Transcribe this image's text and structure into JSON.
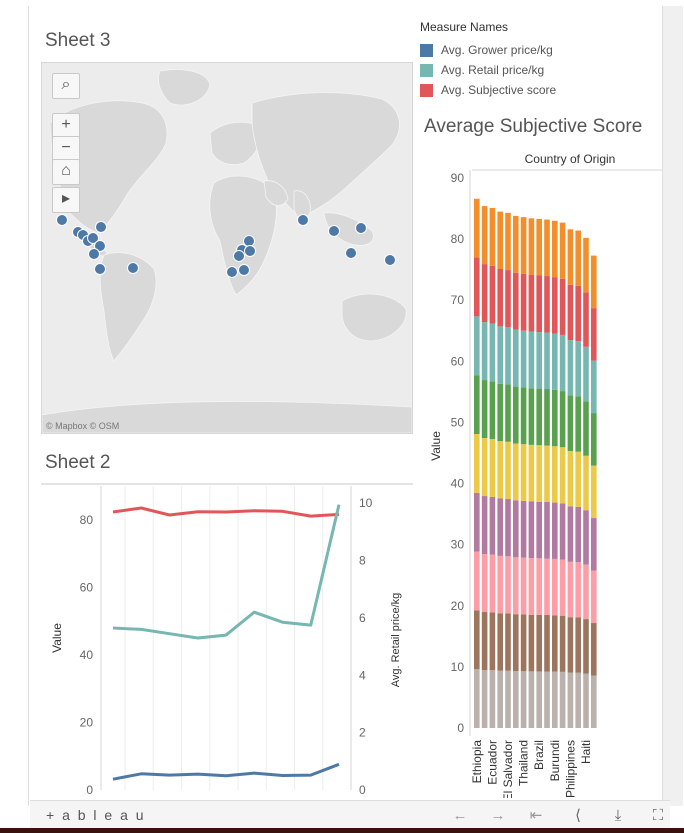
{
  "sheet3": {
    "title": "Sheet 3",
    "credit": "© Mapbox  © OSM"
  },
  "map_controls": {
    "search": "⌕",
    "zoom_in": "+",
    "zoom_out": "−",
    "home": "⌂",
    "expand": "▸"
  },
  "legend": {
    "title": "Measure Names",
    "items": [
      {
        "label": "Avg. Grower price/kg",
        "color": "#4e79a7"
      },
      {
        "label": "Avg. Retail price/kg",
        "color": "#76b7b2"
      },
      {
        "label": "Avg. Subjective score",
        "color": "#e15759"
      }
    ]
  },
  "right_chart": {
    "title": "Average Subjective Score",
    "header": "Country of Origin",
    "ylabel": "Value"
  },
  "sheet2": {
    "title": "Sheet 2",
    "ylabel": "Value",
    "y2label": "Avg. Retail price/kg"
  },
  "toolbar": {
    "logo": "+ a b l e a u"
  },
  "chart_data": [
    {
      "type": "line",
      "title": "Sheet 2",
      "ylabel": "Value",
      "y2label": "Avg. Retail price/kg",
      "ylim": [
        0,
        90
      ],
      "y2lim": [
        0,
        10.6
      ],
      "yticks": [
        0,
        20,
        40,
        60,
        80
      ],
      "y2ticks": [
        0,
        2,
        4,
        6,
        8,
        10
      ],
      "series": [
        {
          "name": "Avg. Subjective score",
          "axis": "left",
          "color": "#e15759",
          "values": [
            82.3,
            83.5,
            81.4,
            82.4,
            82.3,
            82.7,
            82.5,
            81.1,
            81.6
          ]
        },
        {
          "name": "Avg. Retail price/kg",
          "axis": "right",
          "color": "#76b7b2",
          "values": [
            5.65,
            5.6,
            5.45,
            5.3,
            5.4,
            6.2,
            5.85,
            5.75,
            9.95
          ]
        },
        {
          "name": "Avg. Grower price/kg",
          "axis": "left",
          "color": "#4e79a7",
          "values": [
            3.2,
            4.8,
            4.4,
            4.7,
            4.2,
            5.0,
            4.3,
            4.4,
            7.6
          ]
        }
      ]
    },
    {
      "type": "bar",
      "stacked": true,
      "title": "Average Subjective Score",
      "header": "Country of Origin",
      "ylabel": "Value",
      "ylim": [
        0,
        90
      ],
      "yticks": [
        0,
        10,
        20,
        30,
        40,
        50,
        60,
        70,
        80,
        90
      ],
      "categories": [
        "Ethiopia",
        "",
        "Ecuador",
        "",
        "El Salvador",
        "",
        "Thailand",
        "",
        "Brazil",
        "",
        "Burundi",
        "",
        "Philippines",
        "",
        "Haiti",
        ""
      ],
      "totals": [
        86.6,
        85.4,
        85.1,
        84.5,
        84.3,
        83.8,
        83.6,
        83.4,
        83.3,
        83.2,
        83.0,
        82.7,
        81.6,
        81.4,
        80.2,
        77.3
      ],
      "segment_colors": [
        "#bab0ac",
        "#9c755f",
        "#ff9da7",
        "#b07aa1",
        "#edc948",
        "#59a14f",
        "#76b7b2",
        "#e15759",
        "#f28e2b"
      ]
    }
  ]
}
